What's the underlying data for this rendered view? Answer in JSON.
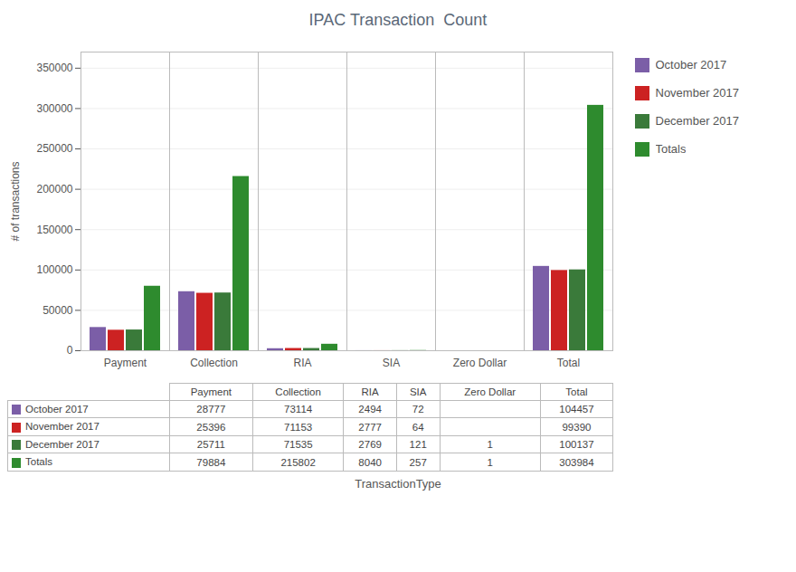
{
  "chart_data": {
    "type": "bar",
    "title": "IPAC Transaction  Count",
    "xlabel": "TransactionType",
    "ylabel": "# of transactions",
    "categories": [
      "Payment",
      "Collection",
      "RIA",
      "SIA",
      "Zero Dollar",
      "Total"
    ],
    "series": [
      {
        "name": "October 2017",
        "color": "#7B5EA7",
        "values": [
          28777,
          73114,
          2494,
          72,
          0,
          104457
        ],
        "value_labels": [
          "28777",
          "73114",
          "2494",
          "72",
          null,
          "104457"
        ]
      },
      {
        "name": "November 2017",
        "color": "#CC2222",
        "values": [
          25396,
          71153,
          2777,
          64,
          0,
          99390
        ],
        "value_labels": [
          "25396",
          "71153",
          "2777",
          "64",
          null,
          "99390"
        ]
      },
      {
        "name": "December 2017",
        "color": "#3A7A3A",
        "values": [
          25711,
          71535,
          2769,
          121,
          1,
          100137
        ]
      },
      {
        "name": "Totals",
        "color": "#2E8B2E",
        "values": [
          79884,
          215802,
          8040,
          257,
          1,
          303984
        ]
      }
    ],
    "ylim": [
      0,
      370000
    ],
    "yticks": [
      0,
      50000,
      100000,
      150000,
      200000,
      250000,
      300000,
      350000
    ],
    "grid": true,
    "legend": "right"
  }
}
